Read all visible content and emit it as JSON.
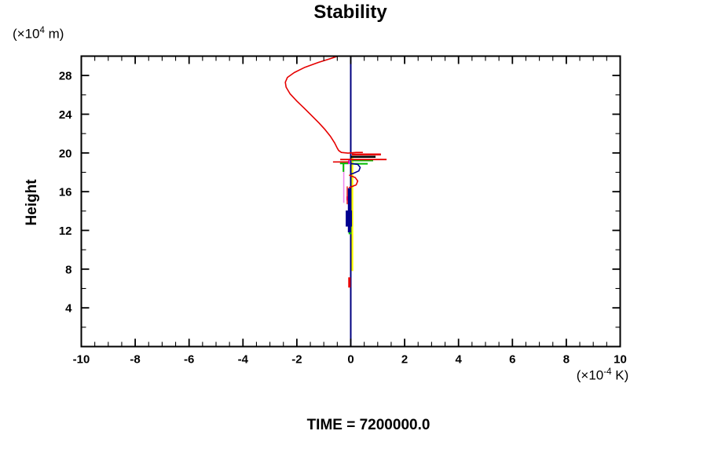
{
  "title": "Stability",
  "caption": "TIME = 7200000.0",
  "y_axis": {
    "label": "Height",
    "unit": {
      "prefix": "(×10",
      "sup": "4",
      "suffix": " m)"
    },
    "tick_values": [
      4,
      8,
      12,
      16,
      20,
      24,
      28
    ]
  },
  "x_axis": {
    "unit": {
      "prefix": "(×10",
      "sup": "-4",
      "suffix": " K)"
    },
    "tick_values": [
      -10,
      -8,
      -6,
      -4,
      -2,
      0,
      2,
      4,
      6,
      8,
      10
    ]
  },
  "chart_data": {
    "type": "line",
    "title": "Stability",
    "xlabel": "(×10⁻⁴ K)",
    "ylabel": "Height (×10⁴ m)",
    "xlim": [
      -10,
      10
    ],
    "ylim": [
      0,
      30
    ],
    "x_major_step": 2,
    "x_minor_step": 0.5,
    "y_major_step": 4,
    "y_minor_step": 2,
    "grid": false,
    "legend": false,
    "frame_color": "#000000",
    "zero_line": {
      "x": 0,
      "color": "#000080",
      "width": 2
    },
    "series": [
      {
        "name": "pink-profile-segment",
        "color": "#ee88ee",
        "width": 1.6,
        "points": [
          [
            -0.26,
            19.0
          ],
          [
            -0.26,
            14.85
          ]
        ]
      },
      {
        "name": "yellow-profile-segment",
        "color": "#ffff00",
        "width": 2.2,
        "points": [
          [
            0.06,
            19.7
          ],
          [
            0.06,
            7.8
          ]
        ]
      },
      {
        "name": "green-vertical-segment",
        "color": "#00bb00",
        "width": 2,
        "points": [
          [
            -0.27,
            18.95
          ],
          [
            -0.27,
            18.05
          ]
        ]
      },
      {
        "name": "green-left-segment",
        "color": "#00bb00",
        "width": 2,
        "points": [
          [
            -0.4,
            18.92
          ],
          [
            -0.07,
            18.92
          ]
        ]
      },
      {
        "name": "green-right-segment-upper",
        "color": "#00bb00",
        "width": 2,
        "points": [
          [
            0.05,
            19.22
          ],
          [
            0.83,
            19.22
          ]
        ]
      },
      {
        "name": "green-right-segment-lower",
        "color": "#00bb00",
        "width": 2,
        "points": [
          [
            0.05,
            18.88
          ],
          [
            0.63,
            18.88
          ]
        ]
      },
      {
        "name": "green-lower-blob",
        "color": "#00bb00",
        "width": 3.5,
        "points": [
          [
            -0.03,
            12.5
          ],
          [
            -0.03,
            11.6
          ]
        ]
      },
      {
        "name": "magenta-segment-upper",
        "color": "#ee00ee",
        "width": 2,
        "points": [
          [
            -0.07,
            19.35
          ],
          [
            -0.07,
            18.85
          ]
        ]
      },
      {
        "name": "magenta-segment-lower",
        "color": "#ee00ee",
        "width": 2,
        "points": [
          [
            -0.13,
            15.5
          ],
          [
            -0.13,
            15.1
          ]
        ]
      },
      {
        "name": "navy-vertical-segment",
        "color": "#000090",
        "width": 4,
        "points": [
          [
            -0.05,
            16.35
          ],
          [
            -0.05,
            11.8
          ]
        ]
      },
      {
        "name": "navy-lower-blob",
        "color": "#000090",
        "width": 8,
        "points": [
          [
            -0.07,
            14.05
          ],
          [
            -0.07,
            12.4
          ]
        ]
      },
      {
        "name": "navy-hook-loop",
        "color": "#000090",
        "width": 1.6,
        "points": [
          [
            0.02,
            18.9
          ],
          [
            0.26,
            18.82
          ],
          [
            0.35,
            18.5
          ],
          [
            0.3,
            18.15
          ],
          [
            0.12,
            17.92
          ],
          [
            0.02,
            17.82
          ]
        ]
      },
      {
        "name": "black-spike-right",
        "color": "#000000",
        "width": 2.5,
        "points": [
          [
            0.0,
            19.6
          ],
          [
            0.92,
            19.6
          ]
        ]
      },
      {
        "name": "red-spike-long",
        "color": "#e60000",
        "width": 1.8,
        "points": [
          [
            -0.39,
            19.32
          ],
          [
            1.33,
            19.32
          ]
        ]
      },
      {
        "name": "red-spike-left",
        "color": "#e60000",
        "width": 1.6,
        "points": [
          [
            -0.66,
            19.07
          ],
          [
            -0.08,
            19.07
          ]
        ]
      },
      {
        "name": "red-spike-right",
        "color": "#e60000",
        "width": 2.5,
        "points": [
          [
            0.04,
            19.85
          ],
          [
            1.12,
            19.85
          ]
        ]
      },
      {
        "name": "red-vertical-thin",
        "color": "#e60000",
        "width": 1.3,
        "points": [
          [
            -0.13,
            16.55
          ],
          [
            -0.13,
            14.7
          ]
        ]
      },
      {
        "name": "red-arc-loop",
        "color": "#e60000",
        "width": 1.6,
        "points": [
          [
            -0.06,
            17.72
          ],
          [
            0.17,
            17.45
          ],
          [
            0.26,
            17.1
          ],
          [
            0.2,
            16.7
          ],
          [
            0.02,
            16.5
          ],
          [
            -0.07,
            16.42
          ]
        ]
      },
      {
        "name": "red-low-segment",
        "color": "#e60000",
        "width": 3,
        "points": [
          [
            -0.05,
            7.15
          ],
          [
            -0.05,
            6.1
          ]
        ]
      },
      {
        "name": "stability-profile-red",
        "color": "#e60000",
        "width": 1.6,
        "points": [
          [
            -0.48,
            30
          ],
          [
            -0.75,
            29.75
          ],
          [
            -1.2,
            29.35
          ],
          [
            -1.7,
            28.85
          ],
          [
            -2.1,
            28.3
          ],
          [
            -2.35,
            27.8
          ],
          [
            -2.43,
            27.3
          ],
          [
            -2.4,
            26.8
          ],
          [
            -2.25,
            26.1
          ],
          [
            -2.0,
            25.35
          ],
          [
            -1.72,
            24.6
          ],
          [
            -1.45,
            23.85
          ],
          [
            -1.18,
            23.1
          ],
          [
            -0.95,
            22.4
          ],
          [
            -0.75,
            21.7
          ],
          [
            -0.6,
            21.05
          ],
          [
            -0.5,
            20.5
          ],
          [
            -0.45,
            20.25
          ],
          [
            -0.35,
            20.05
          ],
          [
            -0.1,
            19.98
          ],
          [
            0.2,
            20.05
          ],
          [
            0.45,
            20.05
          ]
        ]
      }
    ]
  }
}
